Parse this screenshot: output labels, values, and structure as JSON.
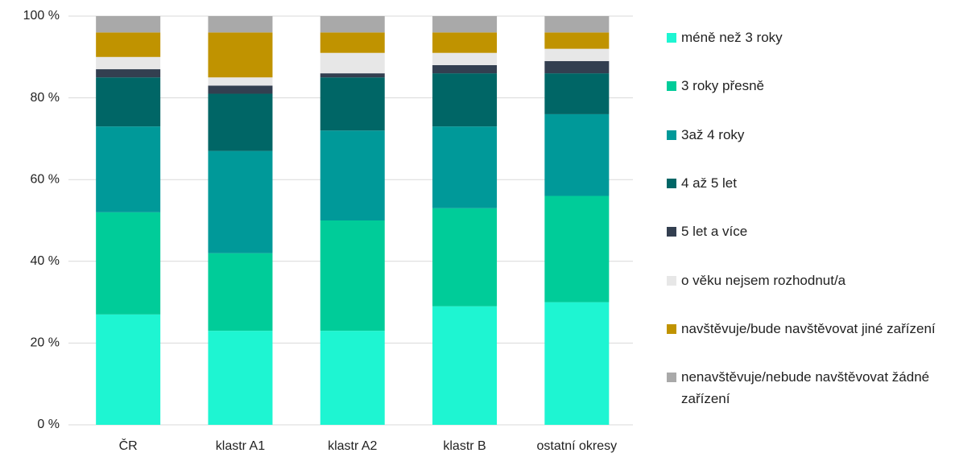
{
  "chart_data": {
    "type": "stacked_bar",
    "categories": [
      "ČR",
      "klastr A1",
      "klastr A2",
      "klastr B",
      "ostatní okresy"
    ],
    "series": [
      {
        "name": "méně než 3 roky",
        "color": "#1ef5d2",
        "values": [
          27,
          23,
          23,
          29,
          30
        ]
      },
      {
        "name": "3 roky přesně",
        "color": "#00cc99",
        "values": [
          25,
          19,
          27,
          24,
          26
        ]
      },
      {
        "name": "3až 4 roky",
        "color": "#009999",
        "values": [
          21,
          25,
          22,
          20,
          20
        ]
      },
      {
        "name": "4 až 5 let",
        "color": "#006666",
        "values": [
          12,
          14,
          13,
          13,
          10
        ]
      },
      {
        "name": "5 let a více",
        "color": "#333f50",
        "values": [
          2,
          2,
          1,
          2,
          3
        ]
      },
      {
        "name": "o věku nejsem rozhodnut/a",
        "color": "#e7e7e7",
        "values": [
          3,
          2,
          5,
          3,
          3
        ]
      },
      {
        "name": "navštěvuje/bude navštěvovat jiné zařízení",
        "color": "#c09300",
        "values": [
          6,
          11,
          5,
          5,
          4
        ]
      },
      {
        "name": "nenavštěvuje/nebude navštěvovat žádné zařízení",
        "color": "#a9a9a9",
        "values": [
          4,
          4,
          4,
          4,
          4
        ]
      }
    ],
    "ylim": [
      0,
      100
    ],
    "yticks": [
      {
        "value": 0,
        "label": "0 %"
      },
      {
        "value": 20,
        "label": "20 %"
      },
      {
        "value": 40,
        "label": "40 %"
      },
      {
        "value": 60,
        "label": "60 %"
      },
      {
        "value": 80,
        "label": "80 %"
      },
      {
        "value": 100,
        "label": "100 %"
      }
    ],
    "grid": true,
    "legend": "right"
  }
}
